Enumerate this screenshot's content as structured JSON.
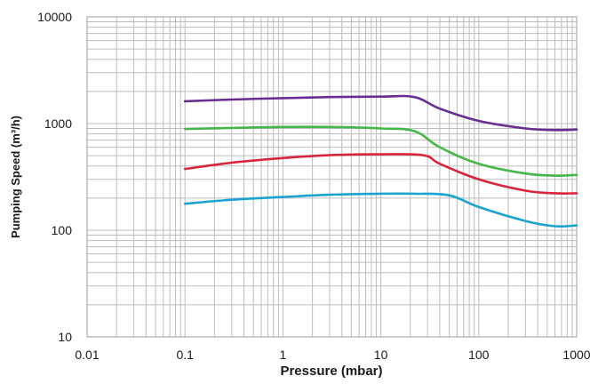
{
  "chart_data": {
    "type": "line",
    "xlabel": "Pressure (mbar)",
    "ylabel": "Pumping Speed (m³/h)",
    "xscale": "log",
    "yscale": "log",
    "xlim": [
      0.01,
      1000
    ],
    "ylim": [
      10,
      10000
    ],
    "x_ticks": [
      "0.01",
      "0.1",
      "1",
      "10",
      "100",
      "1000"
    ],
    "y_ticks": [
      "10",
      "100",
      "1000",
      "10000"
    ],
    "grid": true,
    "series": [
      {
        "color": "#6a2c91",
        "x": [
          0.1,
          0.3,
          1,
          3,
          10,
          22,
          40,
          100,
          300,
          600,
          1000
        ],
        "y": [
          1620,
          1680,
          1730,
          1770,
          1790,
          1770,
          1380,
          1060,
          900,
          870,
          880
        ]
      },
      {
        "color": "#45b649",
        "x": [
          0.1,
          0.3,
          1,
          3,
          10,
          22,
          40,
          100,
          300,
          600,
          1000
        ],
        "y": [
          890,
          910,
          930,
          930,
          900,
          850,
          600,
          420,
          340,
          325,
          330
        ]
      },
      {
        "color": "#d9243c",
        "x": [
          0.1,
          0.3,
          1,
          3,
          10,
          27,
          40,
          100,
          300,
          600,
          1000
        ],
        "y": [
          375,
          430,
          475,
          505,
          515,
          505,
          420,
          300,
          235,
          222,
          222
        ]
      },
      {
        "color": "#1ba3cf",
        "x": [
          0.1,
          0.3,
          1,
          3,
          10,
          22,
          50,
          100,
          300,
          600,
          1000
        ],
        "y": [
          177,
          193,
          205,
          215,
          220,
          220,
          212,
          165,
          122,
          109,
          111
        ]
      }
    ]
  }
}
